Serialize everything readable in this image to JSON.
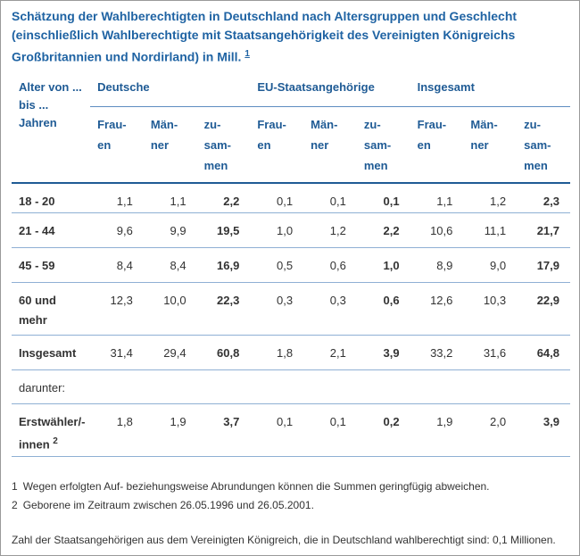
{
  "title": {
    "text": "Schätzung der Wahlberechtigten in Deutschland nach Altersgruppen und Geschlecht (einschließlich Wahlberechtigte mit Staatsangehörigkeit des Vereinigten Königreichs Großbritannien und Nordir­land) in Mill.",
    "footnote_ref": "1"
  },
  "table": {
    "corner": "Alter von ... bis ... Jahren",
    "groups": [
      "Deutsche",
      "EU-Staatsangehörige",
      "Insgesamt"
    ],
    "subheaders": [
      "Frau­en",
      "Män­ner",
      "zu­sam­men",
      "Frau­en",
      "Män­ner",
      "zu­sam­men",
      "Frau­en",
      "Män­ner",
      "zu­sam­men"
    ],
    "rows": [
      {
        "label": "18 - 20",
        "values": [
          "1,1",
          "1,1",
          "2,2",
          "0,1",
          "0,1",
          "0,1",
          "1,1",
          "1,2",
          "2,3"
        ]
      },
      {
        "label": "21 - 44",
        "values": [
          "9,6",
          "9,9",
          "19,5",
          "1,0",
          "1,2",
          "2,2",
          "10,6",
          "11,1",
          "21,7"
        ]
      },
      {
        "label": "45 - 59",
        "values": [
          "8,4",
          "8,4",
          "16,9",
          "0,5",
          "0,6",
          "1,0",
          "8,9",
          "9,0",
          "17,9"
        ]
      },
      {
        "label": "60 und mehr",
        "values": [
          "12,3",
          "10,0",
          "22,3",
          "0,3",
          "0,3",
          "0,6",
          "12,6",
          "10,3",
          "22,9"
        ]
      },
      {
        "label": "Insgesamt",
        "values": [
          "31,4",
          "29,4",
          "60,8",
          "1,8",
          "2,1",
          "3,9",
          "33,2",
          "31,6",
          "64,8"
        ]
      },
      {
        "label": "darunter:"
      },
      {
        "label": "Erstwähler/-innen",
        "footnote_ref": "2",
        "values": [
          "1,8",
          "1,9",
          "3,7",
          "0,1",
          "0,1",
          "0,2",
          "1,9",
          "2,0",
          "3,9"
        ]
      }
    ]
  },
  "footnotes": [
    {
      "number": "1",
      "text": "Wegen erfolgten Auf- beziehungsweise Abrundungen können die Summen geringfügig abweichen."
    },
    {
      "number": "2",
      "text": "Geborene im Zeitraum zwischen 26.05.1996 und 26.05.2001."
    }
  ],
  "note": "Zahl der Staatsangehörigen aus dem Vereinigten Königreich, die in Deutschland wahlberechtigt sind: 0,1 Millionen."
}
